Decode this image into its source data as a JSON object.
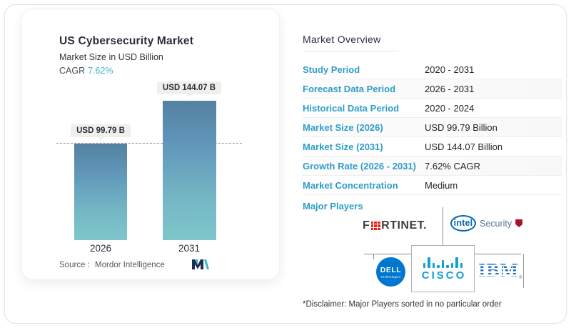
{
  "chart_data": {
    "type": "bar",
    "title": "US Cybersecurity Market",
    "subtitle": "Market Size in USD Billion",
    "cagr_label": "CAGR",
    "cagr_value": "7.62%",
    "categories": [
      "2026",
      "2031"
    ],
    "values": [
      99.79,
      144.07
    ],
    "value_labels": [
      "USD 99.79 B",
      "USD 144.07 B"
    ],
    "unit": "USD Billion",
    "reference_line_value": 99.79,
    "grid": false,
    "legend": "none",
    "bar_gradient": [
      "#54819f",
      "#7ec6cb"
    ]
  },
  "chart_footer": {
    "source_label": "Source :",
    "source_value": "Mordor Intelligence",
    "logo": "mordor-intelligence-logo"
  },
  "overview": {
    "title": "Market Overview",
    "rows": [
      {
        "label": "Study Period",
        "value": "2020 - 2031"
      },
      {
        "label": "Forecast Data Period",
        "value": "2026 - 2031"
      },
      {
        "label": "Historical Data Period",
        "value": "2020 - 2024"
      },
      {
        "label": "Market Size (2026)",
        "value": "USD 99.79 Billion"
      },
      {
        "label": "Market Size (2031)",
        "value": "USD 144.07 Billion"
      },
      {
        "label": "Growth Rate (2026 - 2031)",
        "value": "7.62% CAGR"
      },
      {
        "label": "Market Concentration",
        "value": "Medium"
      }
    ],
    "major_players_label": "Major Players",
    "major_players": [
      "Fortinet",
      "Intel Security",
      "Dell Technologies",
      "Cisco",
      "IBM"
    ],
    "disclaimer": "*Disclaimer: Major Players sorted in no particular order"
  },
  "logos": {
    "fortinet_prefix": "F",
    "fortinet_suffix": "RTINET.",
    "intel_text": "intel",
    "intel_security_text": "Security",
    "dell_text": "DELL",
    "dell_sub": "Technologies",
    "cisco_text": "CISCO",
    "ibm_text": "IBM"
  },
  "colors": {
    "accent_blue": "#2f9dc9",
    "teal": "#44b8c8",
    "bar_top": "#54819f",
    "bar_bottom": "#7ec6cb",
    "dark_text": "#23252d",
    "badge_bg": "#efefeb",
    "cisco_blue": "#15a0d5",
    "dell_blue": "#0076ce",
    "intel_blue": "#0068b5",
    "ibm_blue": "#1f70c1",
    "fortinet_red": "#e2231a"
  }
}
